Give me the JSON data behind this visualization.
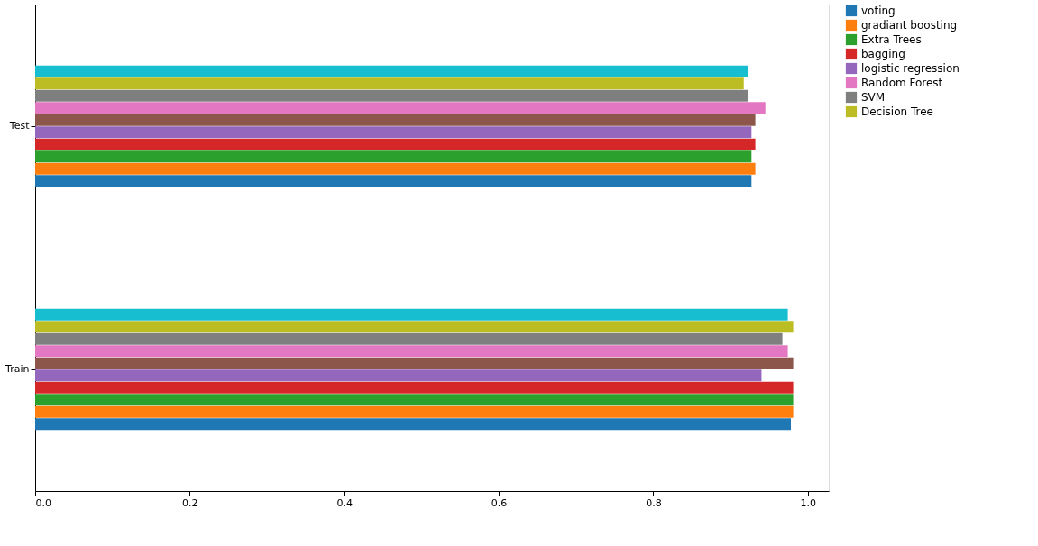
{
  "chart_data": {
    "type": "bar",
    "orientation": "horizontal",
    "categories": [
      "Test",
      "Train"
    ],
    "series": [
      {
        "name": "voting",
        "color": "#1f77b4",
        "values": [
          0.927,
          0.978
        ]
      },
      {
        "name": "gradiant boosting",
        "color": "#ff7f0e",
        "values": [
          0.932,
          0.981
        ]
      },
      {
        "name": "Extra Trees",
        "color": "#2ca02c",
        "values": [
          0.927,
          0.981
        ]
      },
      {
        "name": "bagging",
        "color": "#d62728",
        "values": [
          0.932,
          0.981
        ]
      },
      {
        "name": "logistic regression",
        "color": "#9467bd",
        "values": [
          0.927,
          0.94
        ]
      },
      {
        "color": "#8c564b",
        "values": [
          0.932,
          0.981
        ]
      },
      {
        "name": "Random Forest",
        "color": "#e377c2",
        "values": [
          0.945,
          0.974
        ]
      },
      {
        "name": "SVM",
        "color": "#7f7f7f",
        "values": [
          0.922,
          0.967
        ]
      },
      {
        "name": "Decision Tree",
        "color": "#bcbd22",
        "values": [
          0.917,
          0.981
        ]
      },
      {
        "color": "#17becf",
        "values": [
          0.922,
          0.974
        ]
      }
    ],
    "xlim": [
      0,
      1.027
    ],
    "xticks": [
      {
        "value": 0,
        "label": "0.0"
      },
      0.2,
      0.4,
      0.6,
      0.8,
      {
        "value": 1,
        "label": "1.0"
      }
    ],
    "grid": false,
    "legend": "right"
  }
}
